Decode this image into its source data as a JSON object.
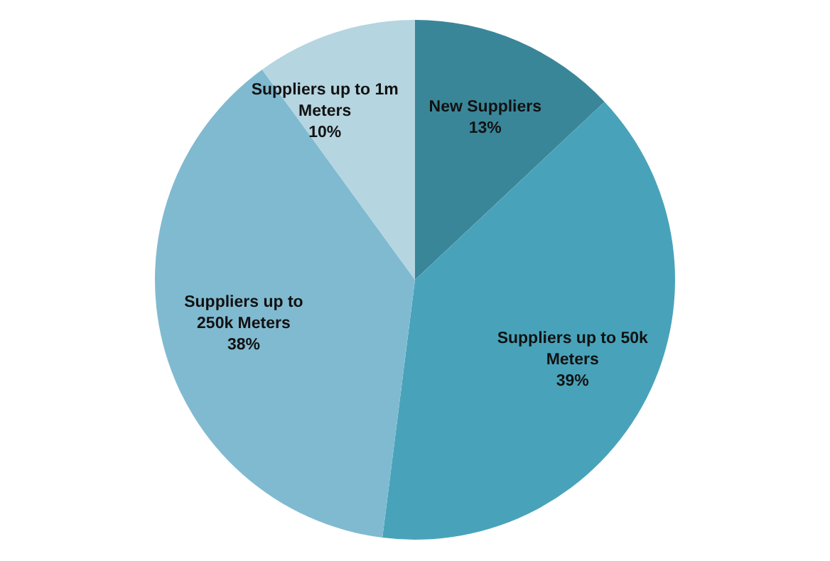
{
  "chart_data": {
    "type": "pie",
    "categories": [
      "New Suppliers",
      "Suppliers up to 50k Meters",
      "Suppliers up to 250k Meters",
      "Suppliers up to 1m Meters"
    ],
    "values": [
      13,
      39,
      38,
      10
    ],
    "value_labels": [
      "13%",
      "39%",
      "38%",
      "10%"
    ],
    "colors": [
      "#3a8699",
      "#48a3ba",
      "#80bad0",
      "#b5d5e0"
    ],
    "legend": false
  }
}
